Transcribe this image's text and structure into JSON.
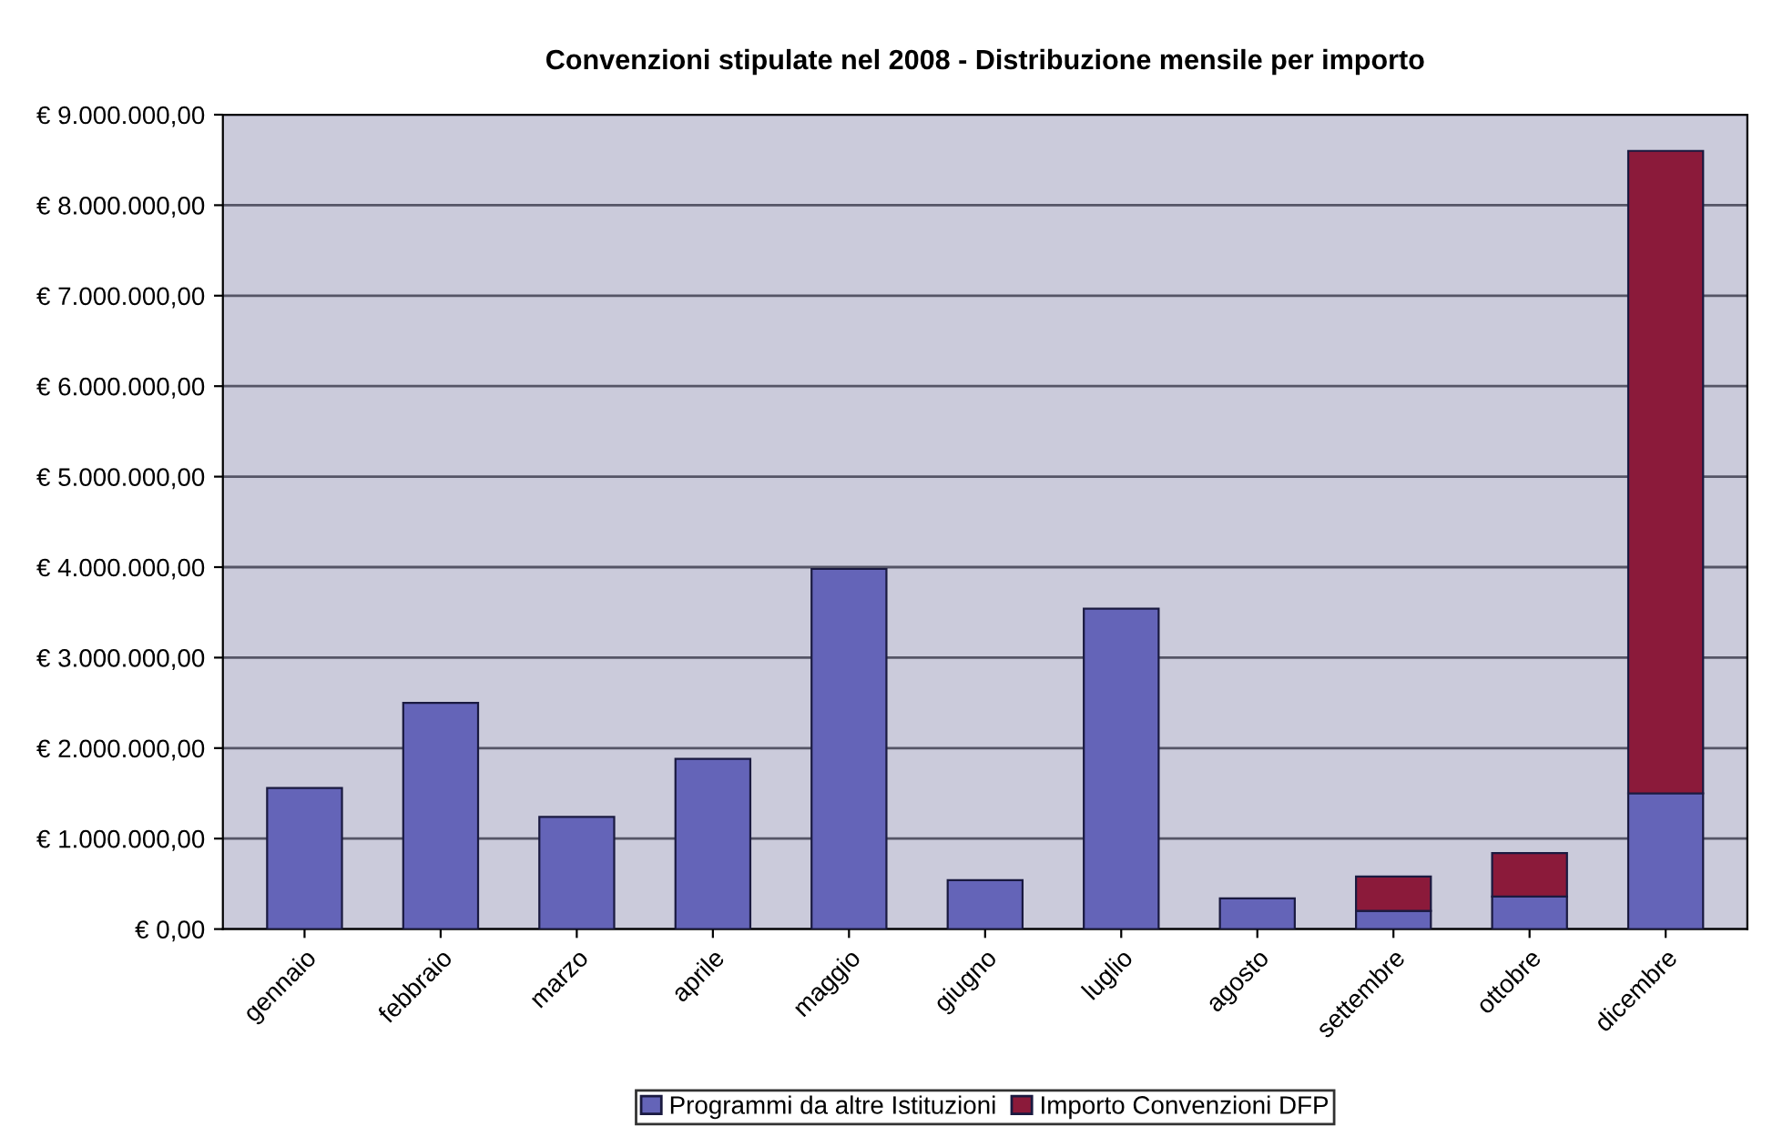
{
  "chart_data": {
    "type": "bar",
    "title": "Convenzioni stipulate nel 2008 - Distribuzione mensile per importo",
    "categories": [
      "gennaio",
      "febbraio",
      "marzo",
      "aprile",
      "maggio",
      "giugno",
      "luglio",
      "agosto",
      "settembre",
      "ottobre",
      "dicembre"
    ],
    "stacked": true,
    "series": [
      {
        "name": "Programmi da altre Istituzioni",
        "color": "#6464b8",
        "values": [
          1560000,
          2500000,
          1240000,
          1880000,
          3980000,
          540000,
          3540000,
          340000,
          200000,
          360000,
          1500000
        ]
      },
      {
        "name": "Importo Convenzioni DFP",
        "color": "#8b1a3a",
        "values": [
          0,
          0,
          0,
          0,
          0,
          0,
          0,
          0,
          380000,
          480000,
          7100000
        ]
      }
    ],
    "ylim": [
      0,
      9000000
    ],
    "yticks": [
      {
        "value": 0,
        "label": "€ 0,00"
      },
      {
        "value": 1000000,
        "label": "€ 1.000.000,00"
      },
      {
        "value": 2000000,
        "label": "€ 2.000.000,00"
      },
      {
        "value": 3000000,
        "label": "€ 3.000.000,00"
      },
      {
        "value": 4000000,
        "label": "€ 4.000.000,00"
      },
      {
        "value": 5000000,
        "label": "€ 5.000.000,00"
      },
      {
        "value": 6000000,
        "label": "€ 6.000.000,00"
      },
      {
        "value": 7000000,
        "label": "€ 7.000.000,00"
      },
      {
        "value": 8000000,
        "label": "€ 8.000.000,00"
      },
      {
        "value": 9000000,
        "label": "€ 9.000.000,00"
      }
    ],
    "grid": "y",
    "legend": "bottom"
  }
}
